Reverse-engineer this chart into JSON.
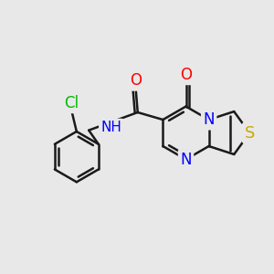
{
  "background_color": "#e8e8e8",
  "bond_color": "#1a1a1a",
  "bond_width": 1.8,
  "atom_colors": {
    "C": "#1a1a1a",
    "N": "#0000ff",
    "O": "#ff0000",
    "S": "#ccaa00",
    "Cl": "#00bb00",
    "H": "#0000ff"
  },
  "font_size": 11,
  "figsize": [
    3.0,
    3.0
  ],
  "dpi": 100
}
